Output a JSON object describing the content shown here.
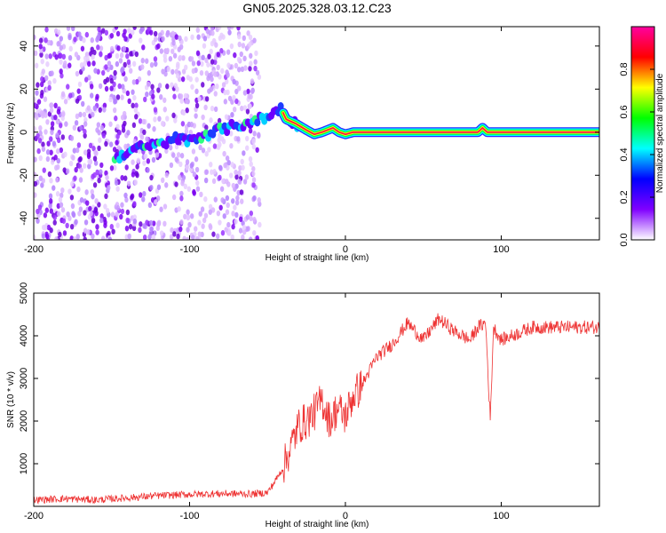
{
  "title": "GN05.2025.328.03.12.C23",
  "chart_data": [
    {
      "type": "heatmap",
      "xlabel": "Height of straight line (km)",
      "ylabel": "Frequency (Hz)",
      "xlim": [
        -200,
        163
      ],
      "ylim": [
        -50,
        49
      ],
      "xticks": [
        -200,
        -100,
        0,
        100
      ],
      "yticks": [
        -40,
        -20,
        0,
        20,
        40
      ],
      "noise_region_x": [
        -200,
        -55
      ],
      "trace": [
        {
          "x": -148,
          "y": -12
        },
        {
          "x": -140,
          "y": -9
        },
        {
          "x": -130,
          "y": -7
        },
        {
          "x": -120,
          "y": -6
        },
        {
          "x": -110,
          "y": -3
        },
        {
          "x": -100,
          "y": -4
        },
        {
          "x": -90,
          "y": -1
        },
        {
          "x": -80,
          "y": 1
        },
        {
          "x": -70,
          "y": 3
        },
        {
          "x": -60,
          "y": 5
        },
        {
          "x": -50,
          "y": 7
        },
        {
          "x": -45,
          "y": 9
        },
        {
          "x": -42,
          "y": 12
        },
        {
          "x": -38,
          "y": 6
        },
        {
          "x": -32,
          "y": 4
        },
        {
          "x": -25,
          "y": 1
        },
        {
          "x": -20,
          "y": -1
        },
        {
          "x": -15,
          "y": 0
        },
        {
          "x": -8,
          "y": 2
        },
        {
          "x": -4,
          "y": 0
        },
        {
          "x": 0,
          "y": -1
        },
        {
          "x": 5,
          "y": 0
        },
        {
          "x": 30,
          "y": 0
        },
        {
          "x": 60,
          "y": 0
        },
        {
          "x": 85,
          "y": 0
        },
        {
          "x": 88,
          "y": 2
        },
        {
          "x": 91,
          "y": 0
        },
        {
          "x": 120,
          "y": 0
        },
        {
          "x": 163,
          "y": 0
        }
      ],
      "colorbar": {
        "label": "Normalized spectral amplitude",
        "range": [
          0,
          1
        ],
        "ticks": [
          "0.0",
          "0.2",
          "0.4",
          "0.6",
          "0.8"
        ],
        "tick_values": [
          0,
          0.2,
          0.4,
          0.6,
          0.8
        ],
        "colors": [
          "#ffffff",
          "#8000ff",
          "#0000ff",
          "#00ffff",
          "#00ff00",
          "#ffff00",
          "#ff0000",
          "#ff00a0"
        ]
      }
    },
    {
      "type": "line",
      "xlabel": "Height of straight line (km)",
      "ylabel": "SNR (10 * v/v)",
      "xlim": [
        -200,
        163
      ],
      "ylim": [
        0,
        5000
      ],
      "xticks": [
        -200,
        -100,
        0,
        100
      ],
      "yticks": [
        1000,
        2000,
        3000,
        4000,
        5000
      ],
      "color": "#ee3333",
      "series": [
        {
          "name": "SNR",
          "x": [
            -200,
            -180,
            -160,
            -140,
            -120,
            -100,
            -80,
            -60,
            -50,
            -45,
            -40,
            -35,
            -30,
            -25,
            -20,
            -15,
            -10,
            -5,
            0,
            5,
            10,
            20,
            30,
            40,
            45,
            50,
            60,
            70,
            80,
            85,
            90,
            93,
            95,
            100,
            120,
            140,
            163
          ],
          "y": [
            150,
            180,
            150,
            200,
            250,
            280,
            300,
            290,
            320,
            600,
            900,
            1400,
            1900,
            2000,
            2200,
            2500,
            2000,
            2300,
            2100,
            2600,
            2800,
            3500,
            3800,
            4300,
            4100,
            3900,
            4400,
            4100,
            3900,
            4200,
            4300,
            2000,
            4200,
            3900,
            4200,
            4200,
            4200
          ]
        }
      ]
    }
  ]
}
